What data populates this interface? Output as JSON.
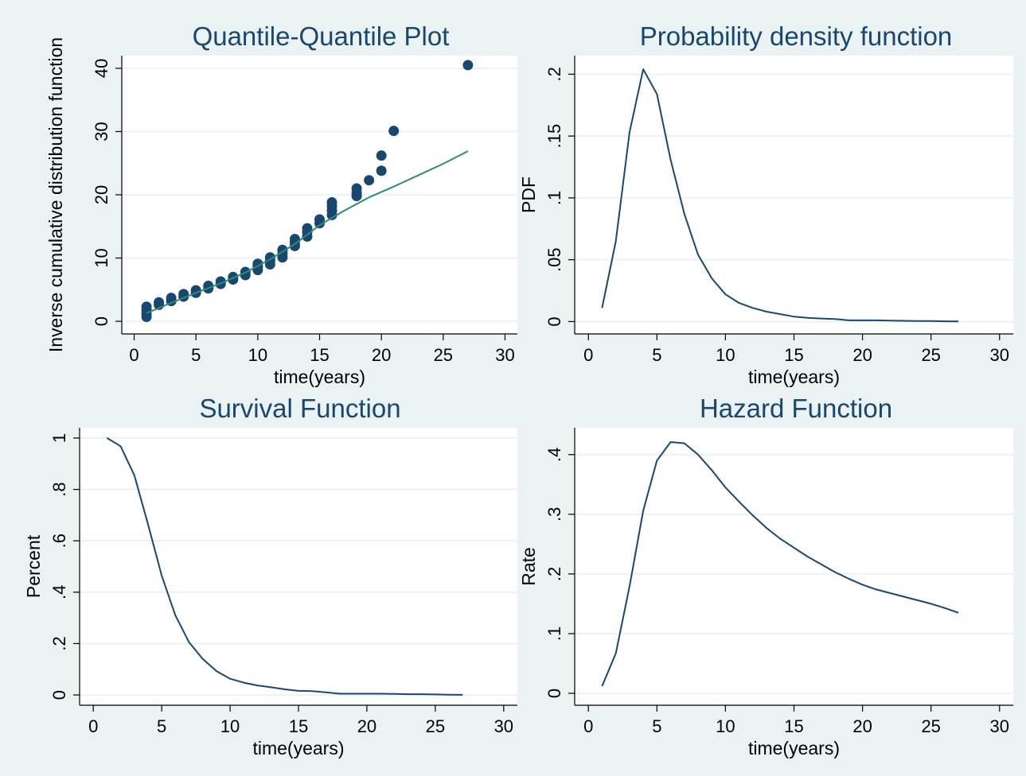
{
  "chart_data": [
    {
      "type": "scatter",
      "title": "Quantile-Quantile Plot",
      "xlabel": "time(years)",
      "ylabel": "Inverse cumulative distribution function",
      "xlim": [
        -1,
        31
      ],
      "ylim": [
        -2,
        42
      ],
      "xticks": [
        "0",
        "5",
        "10",
        "15",
        "20",
        "25",
        "30"
      ],
      "yticks": [
        "0",
        "10",
        "20",
        "30",
        "40"
      ],
      "grid": true,
      "colors": {
        "points": "#1a476f",
        "line": "#2e8b7a"
      },
      "series": [
        {
          "type": "scatter",
          "points": [
            [
              1,
              0.7
            ],
            [
              1,
              1.2
            ],
            [
              1,
              1.8
            ],
            [
              1,
              2.3
            ],
            [
              2,
              2.6
            ],
            [
              2,
              3.0
            ],
            [
              3,
              3.2
            ],
            [
              3,
              3.7
            ],
            [
              4,
              3.9
            ],
            [
              4,
              4.3
            ],
            [
              5,
              4.5
            ],
            [
              5,
              4.9
            ],
            [
              6,
              5.2
            ],
            [
              6,
              5.6
            ],
            [
              7,
              5.9
            ],
            [
              7,
              6.3
            ],
            [
              8,
              6.6
            ],
            [
              8,
              7.0
            ],
            [
              9,
              7.3
            ],
            [
              9,
              7.8
            ],
            [
              10,
              8.1
            ],
            [
              10,
              8.6
            ],
            [
              10,
              9.1
            ],
            [
              11,
              9.0
            ],
            [
              11,
              9.6
            ],
            [
              11,
              10.1
            ],
            [
              12,
              10.1
            ],
            [
              12,
              10.7
            ],
            [
              12,
              11.3
            ],
            [
              13,
              11.9
            ],
            [
              13,
              12.5
            ],
            [
              13,
              13.0
            ],
            [
              14,
              13.4
            ],
            [
              14,
              14.1
            ],
            [
              14,
              14.7
            ],
            [
              15,
              15.5
            ],
            [
              15,
              16.1
            ],
            [
              16,
              16.8
            ],
            [
              16,
              17.5
            ],
            [
              16,
              18.2
            ],
            [
              16,
              18.8
            ],
            [
              18,
              19.8
            ],
            [
              18,
              20.3
            ],
            [
              18,
              21.0
            ],
            [
              19,
              22.3
            ],
            [
              20,
              23.8
            ],
            [
              20,
              26.2
            ],
            [
              21,
              30.1
            ],
            [
              27,
              40.5
            ]
          ]
        },
        {
          "type": "line",
          "points": [
            [
              1,
              1.3
            ],
            [
              3,
              2.9
            ],
            [
              5,
              4.5
            ],
            [
              7,
              6.0
            ],
            [
              9,
              7.7
            ],
            [
              11,
              9.8
            ],
            [
              13,
              12.2
            ],
            [
              15,
              15.2
            ],
            [
              17,
              17.5
            ],
            [
              19,
              19.6
            ],
            [
              21,
              21.3
            ],
            [
              23,
              23.1
            ],
            [
              25,
              24.9
            ],
            [
              27,
              26.9
            ]
          ]
        }
      ]
    },
    {
      "type": "line",
      "title": "Probability density function",
      "xlabel": "time(years)",
      "ylabel": "PDF",
      "xlim": [
        -1,
        31
      ],
      "ylim": [
        -0.01,
        0.215
      ],
      "xticks": [
        "0",
        "5",
        "10",
        "15",
        "20",
        "25",
        "30"
      ],
      "yticks": [
        "0",
        ".05",
        ".1",
        ".15",
        ".2"
      ],
      "grid": true,
      "colors": {
        "line": "#1a476f"
      },
      "series": [
        {
          "type": "line",
          "points": [
            [
              1,
              0.011
            ],
            [
              2,
              0.065
            ],
            [
              3,
              0.153
            ],
            [
              4,
              0.204
            ],
            [
              5,
              0.184
            ],
            [
              6,
              0.131
            ],
            [
              7,
              0.087
            ],
            [
              8,
              0.054
            ],
            [
              9,
              0.035
            ],
            [
              10,
              0.022
            ],
            [
              11,
              0.015
            ],
            [
              12,
              0.011
            ],
            [
              13,
              0.008
            ],
            [
              14,
              0.006
            ],
            [
              15,
              0.004
            ],
            [
              16,
              0.003
            ],
            [
              17,
              0.0025
            ],
            [
              18,
              0.002
            ],
            [
              19,
              0.001
            ],
            [
              20,
              0.001
            ],
            [
              21,
              0.001
            ],
            [
              22,
              0.0008
            ],
            [
              23,
              0.0006
            ],
            [
              24,
              0.0005
            ],
            [
              25,
              0.0004
            ],
            [
              26,
              0.0002
            ],
            [
              27,
              0.0001
            ]
          ]
        }
      ]
    },
    {
      "type": "line",
      "title": "Survival Function",
      "xlabel": "time(years)",
      "ylabel": "Percent",
      "xlim": [
        -1,
        31
      ],
      "ylim": [
        -0.04,
        1.04
      ],
      "xticks": [
        "0",
        "5",
        "10",
        "15",
        "20",
        "25",
        "30"
      ],
      "yticks": [
        "0",
        ".2",
        ".4",
        ".6",
        ".8",
        "1"
      ],
      "grid": true,
      "colors": {
        "line": "#1a476f"
      },
      "series": [
        {
          "type": "line",
          "points": [
            [
              1,
              1.0
            ],
            [
              2,
              0.968
            ],
            [
              3,
              0.855
            ],
            [
              4,
              0.665
            ],
            [
              5,
              0.465
            ],
            [
              6,
              0.31
            ],
            [
              7,
              0.205
            ],
            [
              8,
              0.14
            ],
            [
              9,
              0.093
            ],
            [
              10,
              0.063
            ],
            [
              11,
              0.048
            ],
            [
              12,
              0.037
            ],
            [
              13,
              0.03
            ],
            [
              14,
              0.022
            ],
            [
              15,
              0.016
            ],
            [
              16,
              0.015
            ],
            [
              17,
              0.01
            ],
            [
              18,
              0.005
            ],
            [
              19,
              0.005
            ],
            [
              20,
              0.005
            ],
            [
              21,
              0.005
            ],
            [
              22,
              0.004
            ],
            [
              23,
              0.003
            ],
            [
              24,
              0.003
            ],
            [
              25,
              0.002
            ],
            [
              26,
              0.001
            ],
            [
              27,
              0.0005
            ]
          ]
        }
      ]
    },
    {
      "type": "line",
      "title": "Hazard Function",
      "xlabel": "time(years)",
      "ylabel": "Rate",
      "xlim": [
        -1,
        31
      ],
      "ylim": [
        -0.02,
        0.445
      ],
      "xticks": [
        "0",
        "5",
        "10",
        "15",
        "20",
        "25",
        "30"
      ],
      "yticks": [
        "0",
        ".1",
        ".2",
        ".3",
        ".4"
      ],
      "grid": true,
      "colors": {
        "line": "#1a476f"
      },
      "series": [
        {
          "type": "line",
          "points": [
            [
              1,
              0.012
            ],
            [
              2,
              0.067
            ],
            [
              3,
              0.179
            ],
            [
              4,
              0.306
            ],
            [
              5,
              0.39
            ],
            [
              6,
              0.421
            ],
            [
              7,
              0.419
            ],
            [
              8,
              0.4
            ],
            [
              9,
              0.374
            ],
            [
              10,
              0.345
            ],
            [
              11,
              0.321
            ],
            [
              12,
              0.298
            ],
            [
              13,
              0.277
            ],
            [
              14,
              0.259
            ],
            [
              15,
              0.244
            ],
            [
              16,
              0.229
            ],
            [
              17,
              0.216
            ],
            [
              18,
              0.203
            ],
            [
              19,
              0.192
            ],
            [
              20,
              0.182
            ],
            [
              21,
              0.174
            ],
            [
              22,
              0.168
            ],
            [
              23,
              0.162
            ],
            [
              24,
              0.156
            ],
            [
              25,
              0.15
            ],
            [
              26,
              0.143
            ],
            [
              27,
              0.135
            ]
          ]
        }
      ]
    }
  ]
}
